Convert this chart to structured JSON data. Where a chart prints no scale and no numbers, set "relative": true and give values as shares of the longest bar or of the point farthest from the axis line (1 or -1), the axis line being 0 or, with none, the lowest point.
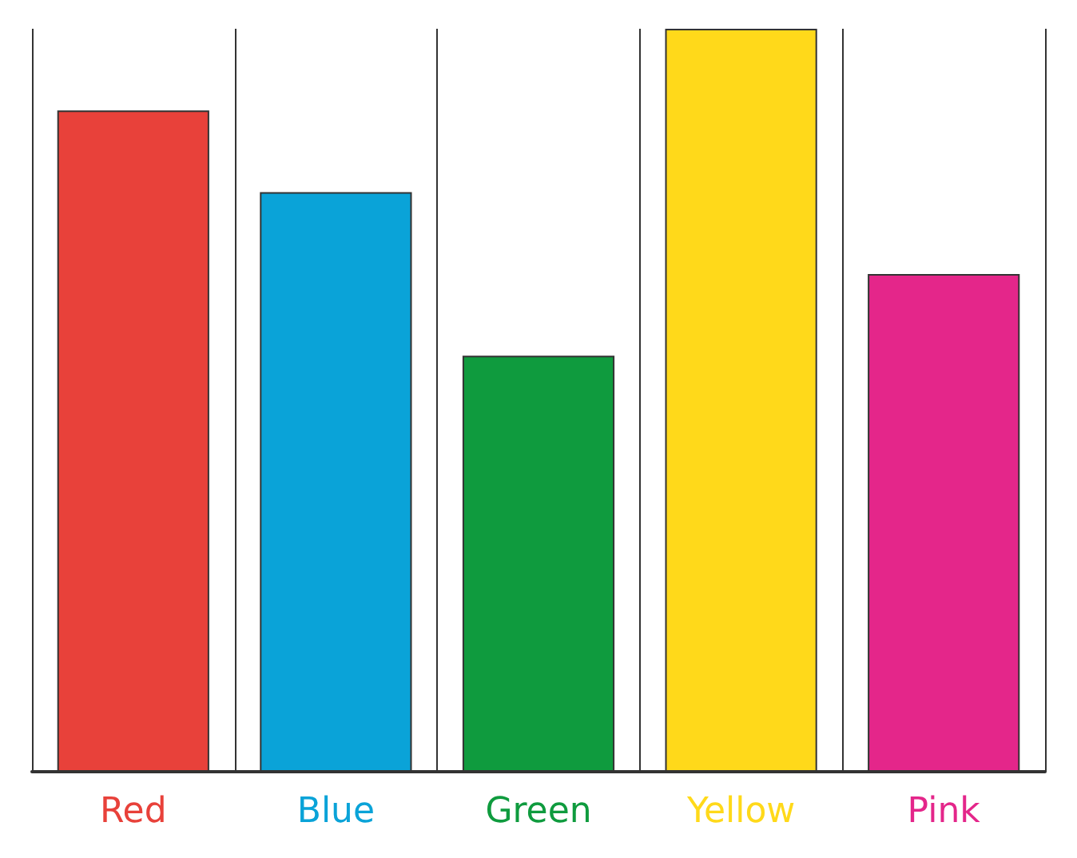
{
  "chart_data": {
    "type": "bar",
    "relative": true,
    "categories": [
      "Red",
      "Blue",
      "Green",
      "Yellow",
      "Pink"
    ],
    "values": [
      0.89,
      0.78,
      0.56,
      1,
      0.67
    ],
    "colors": [
      "#e8413a",
      "#0aa3d8",
      "#0f9b3e",
      "#ffd91a",
      "#e4268a"
    ]
  }
}
